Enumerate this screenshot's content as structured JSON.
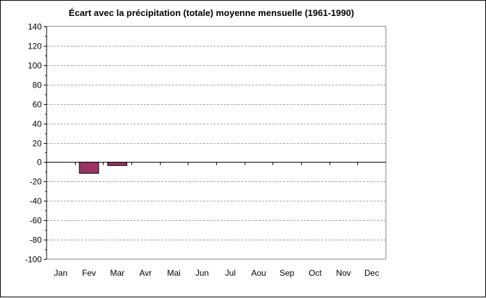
{
  "chart_data": {
    "type": "bar",
    "title": "Écart avec la précipitation (totale) moyenne mensuelle (1961-1990)",
    "xlabel": "",
    "ylabel": "",
    "categories": [
      "Jan",
      "Fev",
      "Mar",
      "Avr",
      "Mai",
      "Jun",
      "Jul",
      "Aou",
      "Sep",
      "Oct",
      "Nov",
      "Dec"
    ],
    "values": [
      null,
      -11.5,
      -3.5,
      null,
      null,
      null,
      null,
      null,
      null,
      null,
      null,
      null
    ],
    "ylim": [
      -100,
      140
    ],
    "yticks": [
      140,
      120,
      100,
      80,
      60,
      40,
      20,
      0,
      -20,
      -40,
      -60,
      -80,
      -100
    ],
    "grid": true,
    "legend": "none",
    "bar_color": "#993366"
  }
}
